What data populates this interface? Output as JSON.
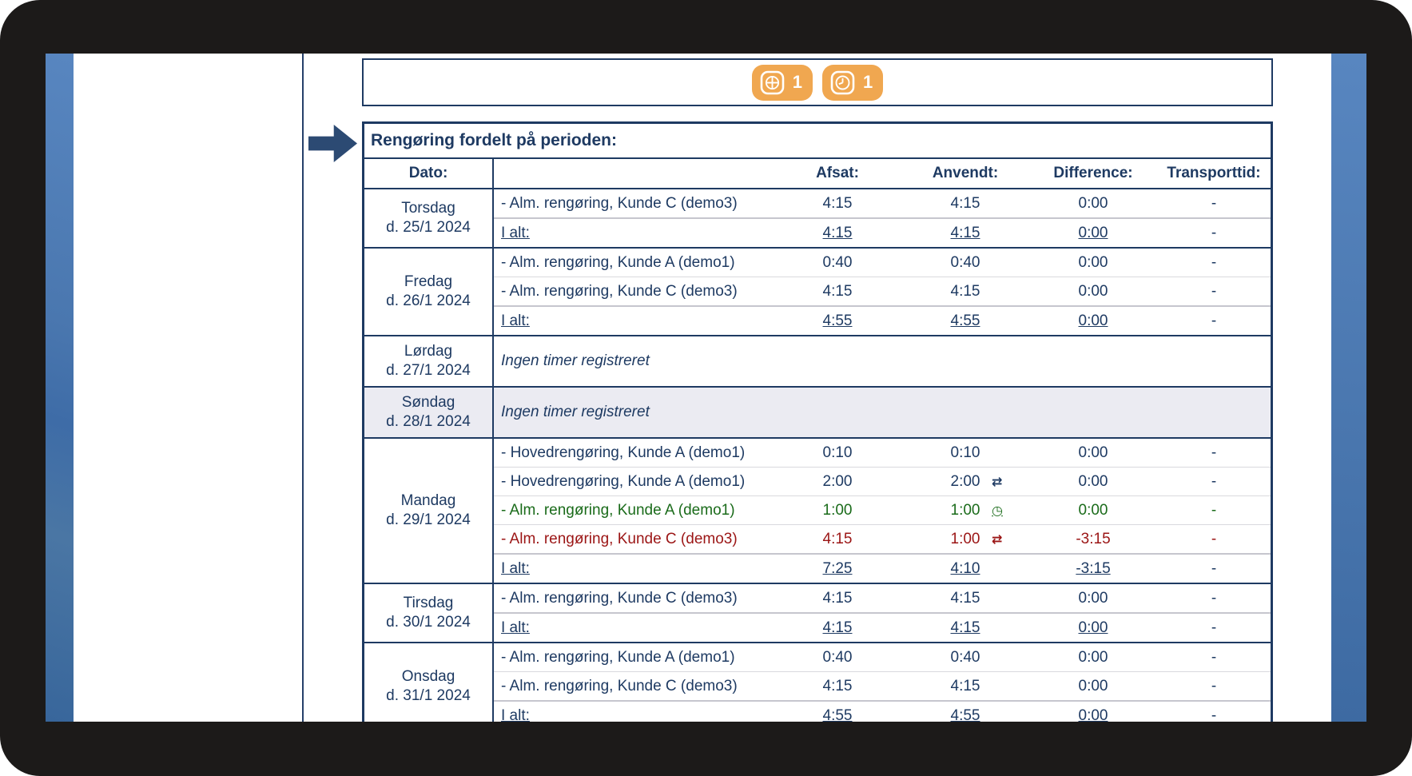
{
  "toolbar": {
    "buttons": [
      {
        "icon": "add-box-icon",
        "count": "1"
      },
      {
        "icon": "clock-icon",
        "count": "1"
      }
    ]
  },
  "colors": {
    "accent_navy": "#1e3a62",
    "button_orange": "#f0a750",
    "ok_green": "#1a6b1a",
    "alert_red": "#9b1515",
    "shaded_row": "#ebebf2"
  },
  "table": {
    "title": "Rengøring fordelt på perioden:",
    "columns": {
      "date": "Dato:",
      "afsat": "Afsat:",
      "anvendt": "Anvendt:",
      "difference": "Difference:",
      "transport": "Transporttid:"
    },
    "total_label": "I alt:",
    "empty_text": "Ingen timer registreret",
    "days": [
      {
        "name": "Torsdag",
        "date": "d. 25/1 2024",
        "shaded": false,
        "empty": false,
        "entries": [
          {
            "task": "- Alm. rengøring, Kunde C (demo3)",
            "afsat": "4:15",
            "anvendt": "4:15",
            "difference": "0:00",
            "transport": "-",
            "color": "default",
            "icon": ""
          }
        ],
        "total": {
          "afsat": "4:15",
          "anvendt": "4:15",
          "difference": "0:00",
          "transport": "-"
        }
      },
      {
        "name": "Fredag",
        "date": "d. 26/1 2024",
        "shaded": false,
        "empty": false,
        "entries": [
          {
            "task": "- Alm. rengøring, Kunde A (demo1)",
            "afsat": "0:40",
            "anvendt": "0:40",
            "difference": "0:00",
            "transport": "-",
            "color": "default",
            "icon": ""
          },
          {
            "task": "- Alm. rengøring, Kunde C (demo3)",
            "afsat": "4:15",
            "anvendt": "4:15",
            "difference": "0:00",
            "transport": "-",
            "color": "default",
            "icon": ""
          }
        ],
        "total": {
          "afsat": "4:55",
          "anvendt": "4:55",
          "difference": "0:00",
          "transport": "-"
        }
      },
      {
        "name": "Lørdag",
        "date": "d. 27/1 2024",
        "shaded": false,
        "empty": true
      },
      {
        "name": "Søndag",
        "date": "d. 28/1 2024",
        "shaded": true,
        "empty": true
      },
      {
        "name": "Mandag",
        "date": "d. 29/1 2024",
        "shaded": false,
        "empty": false,
        "entries": [
          {
            "task": "- Hovedrengøring, Kunde A (demo1)",
            "afsat": "0:10",
            "anvendt": "0:10",
            "difference": "0:00",
            "transport": "-",
            "color": "default",
            "icon": ""
          },
          {
            "task": "- Hovedrengøring, Kunde A (demo1)",
            "afsat": "2:00",
            "anvendt": "2:00",
            "difference": "0:00",
            "transport": "-",
            "color": "default",
            "icon": "swap-arrows-icon"
          },
          {
            "task": "- Alm. rengøring, Kunde A (demo1)",
            "afsat": "1:00",
            "anvendt": "1:00",
            "difference": "0:00",
            "transport": "-",
            "color": "green",
            "icon": "clock-icon"
          },
          {
            "task": "- Alm. rengøring, Kunde C (demo3)",
            "afsat": "4:15",
            "anvendt": "1:00",
            "difference": "-3:15",
            "transport": "-",
            "color": "red",
            "icon": "swap-arrows-icon"
          }
        ],
        "total": {
          "afsat": "7:25",
          "anvendt": "4:10",
          "difference": "-3:15",
          "transport": "-"
        }
      },
      {
        "name": "Tirsdag",
        "date": "d. 30/1 2024",
        "shaded": false,
        "empty": false,
        "entries": [
          {
            "task": "- Alm. rengøring, Kunde C (demo3)",
            "afsat": "4:15",
            "anvendt": "4:15",
            "difference": "0:00",
            "transport": "-",
            "color": "default",
            "icon": ""
          }
        ],
        "total": {
          "afsat": "4:15",
          "anvendt": "4:15",
          "difference": "0:00",
          "transport": "-"
        }
      },
      {
        "name": "Onsdag",
        "date": "d. 31/1 2024",
        "shaded": false,
        "empty": false,
        "entries": [
          {
            "task": "- Alm. rengøring, Kunde A (demo1)",
            "afsat": "0:40",
            "anvendt": "0:40",
            "difference": "0:00",
            "transport": "-",
            "color": "default",
            "icon": ""
          },
          {
            "task": "- Alm. rengøring, Kunde C (demo3)",
            "afsat": "4:15",
            "anvendt": "4:15",
            "difference": "0:00",
            "transport": "-",
            "color": "default",
            "icon": ""
          }
        ],
        "total": {
          "afsat": "4:55",
          "anvendt": "4:55",
          "difference": "0:00",
          "transport": "-"
        }
      }
    ]
  }
}
